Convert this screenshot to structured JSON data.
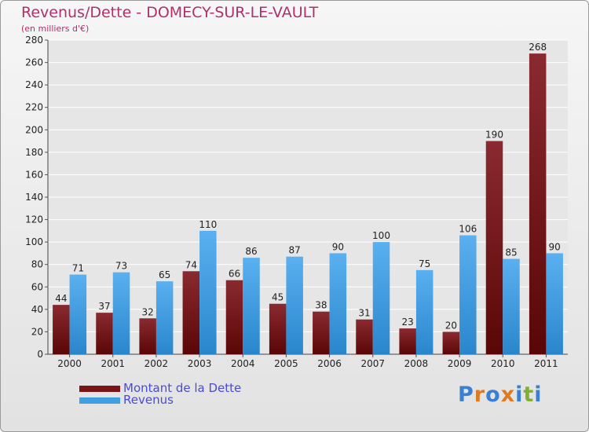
{
  "title": "Revenus/Dette - DOMECY-SUR-LE-VAULT",
  "subtitle": "(en milliers d'€)",
  "logo": {
    "letters": [
      "P",
      "r",
      "o",
      "x",
      "i",
      "t",
      "i"
    ]
  },
  "colors": {
    "title": "#b0306a",
    "dette": "#7a1418",
    "revenus": "#3f9fe0",
    "grid": "#ffffff",
    "axis_text": "#222222",
    "legend_text": "#4a4ad8",
    "logo": [
      "#3a7fd0",
      "#e07a20",
      "#3a7fd0",
      "#e07a20",
      "#3a7fd0",
      "#80b030",
      "#3a7fd0"
    ]
  },
  "chart_data": {
    "type": "bar",
    "title": "Revenus/Dette - DOMECY-SUR-LE-VAULT",
    "ylabel": "(en milliers d'€)",
    "xlabel": "",
    "categories": [
      "2000",
      "2001",
      "2002",
      "2003",
      "2004",
      "2005",
      "2006",
      "2007",
      "2008",
      "2009",
      "2010",
      "2011"
    ],
    "series": [
      {
        "name": "Montant de la Dette",
        "values": [
          44,
          37,
          32,
          74,
          66,
          45,
          38,
          31,
          23,
          20,
          190,
          268
        ]
      },
      {
        "name": "Revenus",
        "values": [
          71,
          73,
          65,
          110,
          86,
          87,
          90,
          100,
          75,
          106,
          85,
          90
        ]
      }
    ],
    "ylim": [
      0,
      280
    ],
    "yticks": [
      0,
      20,
      40,
      60,
      80,
      100,
      120,
      140,
      160,
      180,
      200,
      220,
      240,
      260,
      280
    ],
    "grid": true,
    "legend_position": "bottom-left"
  }
}
